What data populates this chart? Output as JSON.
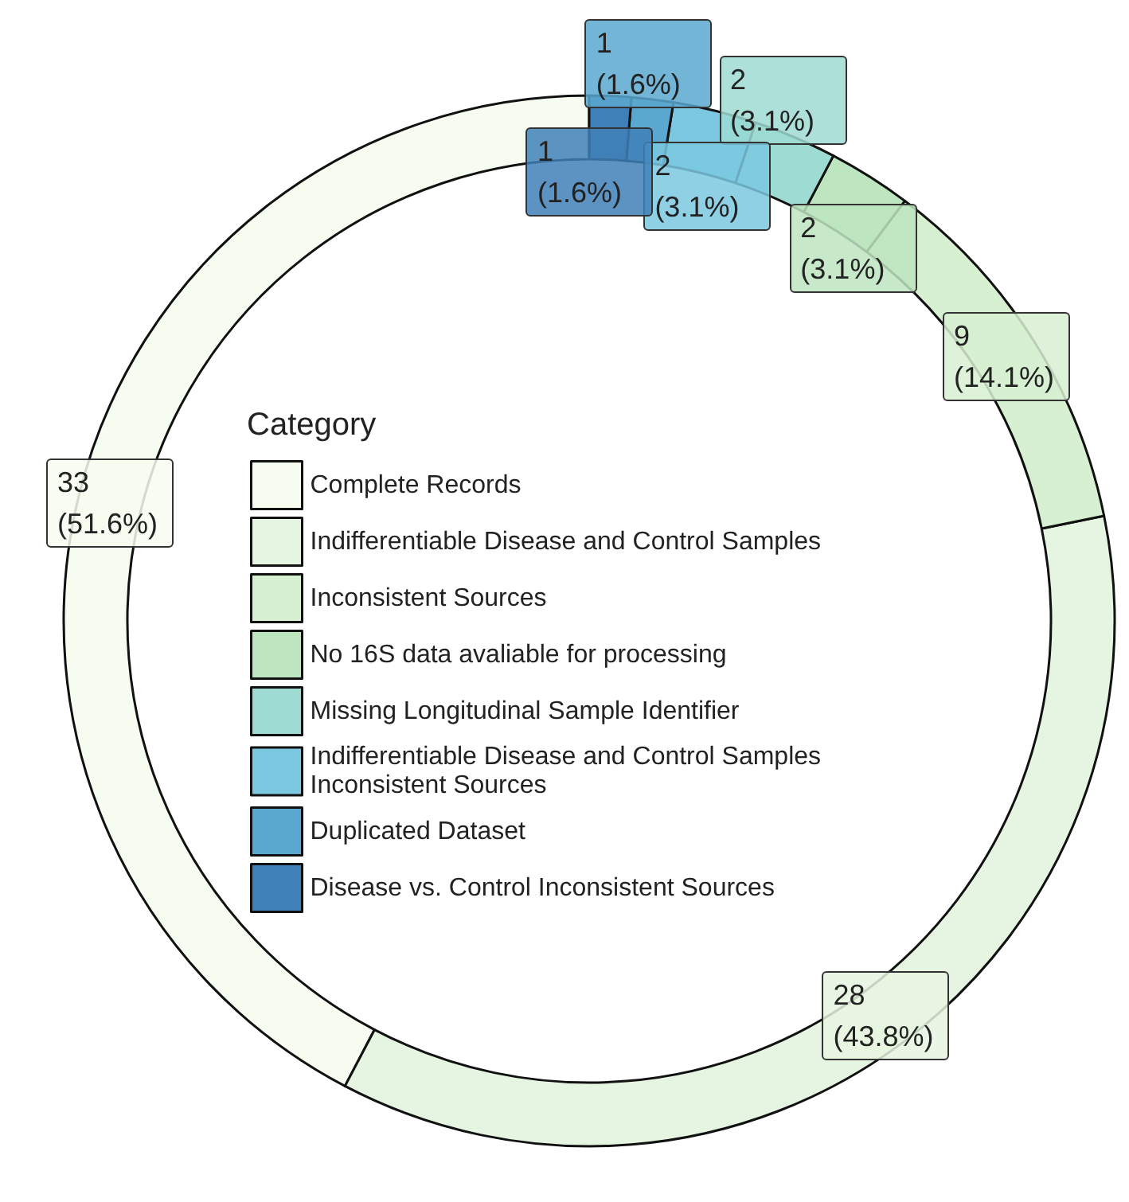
{
  "chart_data": {
    "type": "donut",
    "legend_title": "Category",
    "categories": [
      "Complete Records",
      "Indifferentiable Disease and Control Samples",
      "Inconsistent Sources",
      "No 16S data avaliable for processing",
      "Missing Longitudinal Sample Identifier",
      "Indifferentiable Disease and Control Samples Inconsistent Sources",
      "Duplicated Dataset",
      "Disease vs. Control Inconsistent Sources"
    ],
    "values": [
      33,
      28,
      9,
      2,
      2,
      2,
      1,
      1
    ],
    "value_labels": [
      "33 (51.6%)",
      "28 (43.8%)",
      "9 (14.1%)",
      "2 (3.1%)",
      "2 (3.1%)",
      "2 (3.1%)",
      "1 (1.6%)",
      "1 (1.6%)"
    ],
    "colors": [
      "#f7fcf0",
      "#e6f5e1",
      "#d8f0d2",
      "#bde5bf",
      "#9edbd2",
      "#7bc8e0",
      "#5aa8d0",
      "#3f80b8"
    ],
    "legend": "center"
  }
}
